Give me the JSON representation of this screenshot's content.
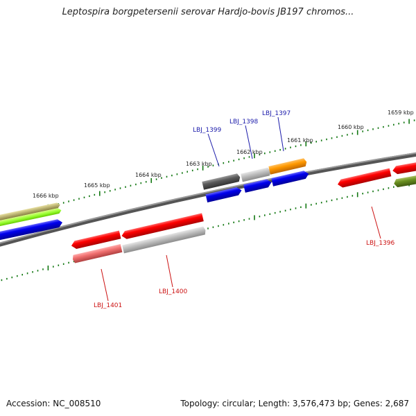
{
  "title": "Leptospira borgpetersenii serovar Hardjo-bovis JB197 chromos...",
  "footer": {
    "accession": "Accession: NC_008510",
    "topology": "Topology: circular; Length: 3,576,473 bp; Genes: 2,687"
  },
  "ruler_labels": [
    "1666 kbp",
    "1665 kbp",
    "1664 kbp",
    "1663 kbp",
    "1662 kbp",
    "1661 kbp",
    "1660 kbp",
    "1659 kbp"
  ],
  "gene_labels": {
    "top": [
      "LBJ_1399",
      "LBJ_1398",
      "LBJ_1397"
    ],
    "bottom": [
      "LBJ_1401",
      "LBJ_1400",
      "LBJ_1396"
    ]
  },
  "colors": {
    "forward_cds": "#0000ee",
    "reverse_cds": "#ee0000",
    "ruler": "#117711",
    "backbone": "#777777",
    "top_label": "#1a1aaa",
    "bottom_label": "#cc1111"
  }
}
